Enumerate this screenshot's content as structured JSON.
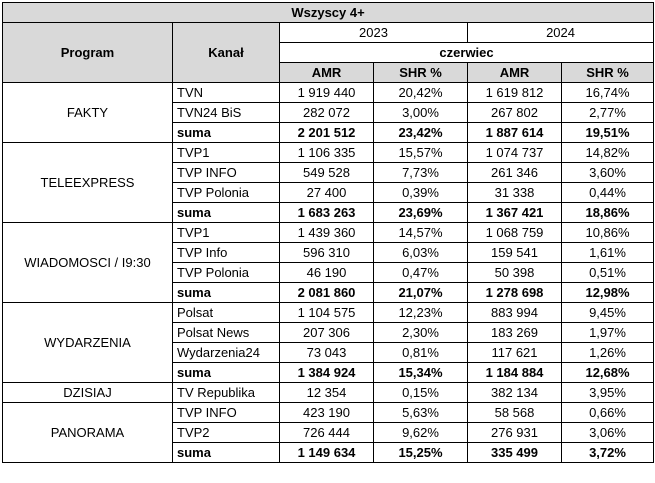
{
  "header": {
    "title": "Wszyscy 4+",
    "col_program": "Program",
    "col_kanal": "Kanał",
    "year_a": "2023",
    "year_b": "2024",
    "month": "czerwiec",
    "amr": "AMR",
    "shr": "SHR %"
  },
  "groups": [
    {
      "program": "FAKTY",
      "rows": [
        {
          "kanal": "TVN",
          "amr23": "1 919 440",
          "shr23": "20,42%",
          "amr24": "1 619 812",
          "shr24": "16,74%"
        },
        {
          "kanal": "TVN24 BiS",
          "amr23": "282 072",
          "shr23": "3,00%",
          "amr24": "267 802",
          "shr24": "2,77%"
        },
        {
          "kanal": "suma",
          "amr23": "2 201 512",
          "shr23": "23,42%",
          "amr24": "1 887 614",
          "shr24": "19,51%"
        }
      ]
    },
    {
      "program": "TELEEXPRESS",
      "rows": [
        {
          "kanal": "TVP1",
          "amr23": "1 106 335",
          "shr23": "15,57%",
          "amr24": "1 074 737",
          "shr24": "14,82%"
        },
        {
          "kanal": "TVP INFO",
          "amr23": "549 528",
          "shr23": "7,73%",
          "amr24": "261 346",
          "shr24": "3,60%"
        },
        {
          "kanal": "TVP Polonia",
          "amr23": "27 400",
          "shr23": "0,39%",
          "amr24": "31 338",
          "shr24": "0,44%"
        },
        {
          "kanal": "suma",
          "amr23": "1 683 263",
          "shr23": "23,69%",
          "amr24": "1 367 421",
          "shr24": "18,86%"
        }
      ]
    },
    {
      "program": "WIADOMOSCI / I9:30",
      "rows": [
        {
          "kanal": "TVP1",
          "amr23": "1 439 360",
          "shr23": "14,57%",
          "amr24": "1 068 759",
          "shr24": "10,86%"
        },
        {
          "kanal": "TVP Info",
          "amr23": "596 310",
          "shr23": "6,03%",
          "amr24": "159 541",
          "shr24": "1,61%"
        },
        {
          "kanal": "TVP Polonia",
          "amr23": "46 190",
          "shr23": "0,47%",
          "amr24": "50 398",
          "shr24": "0,51%"
        },
        {
          "kanal": "suma",
          "amr23": "2 081 860",
          "shr23": "21,07%",
          "amr24": "1 278 698",
          "shr24": "12,98%"
        }
      ]
    },
    {
      "program": "WYDARZENIA",
      "rows": [
        {
          "kanal": "Polsat",
          "amr23": "1 104 575",
          "shr23": "12,23%",
          "amr24": "883 994",
          "shr24": "9,45%"
        },
        {
          "kanal": "Polsat News",
          "amr23": "207 306",
          "shr23": "2,30%",
          "amr24": "183 269",
          "shr24": "1,97%"
        },
        {
          "kanal": "Wydarzenia24",
          "amr23": "73 043",
          "shr23": "0,81%",
          "amr24": "117 621",
          "shr24": "1,26%"
        },
        {
          "kanal": "suma",
          "amr23": "1 384 924",
          "shr23": "15,34%",
          "amr24": "1 184 884",
          "shr24": "12,68%"
        }
      ]
    },
    {
      "program": "DZISIAJ",
      "rows": [
        {
          "kanal": "TV Republika",
          "amr23": "12 354",
          "shr23": "0,15%",
          "amr24": "382 134",
          "shr24": "3,95%"
        }
      ]
    },
    {
      "program": "PANORAMA",
      "rows": [
        {
          "kanal": "TVP INFO",
          "amr23": "423 190",
          "shr23": "5,63%",
          "amr24": "58 568",
          "shr24": "0,66%"
        },
        {
          "kanal": "TVP2",
          "amr23": "726 444",
          "shr23": "9,62%",
          "amr24": "276 931",
          "shr24": "3,06%"
        },
        {
          "kanal": "suma",
          "amr23": "1 149 634",
          "shr23": "15,25%",
          "amr24": "335 499",
          "shr24": "3,72%"
        }
      ]
    }
  ]
}
